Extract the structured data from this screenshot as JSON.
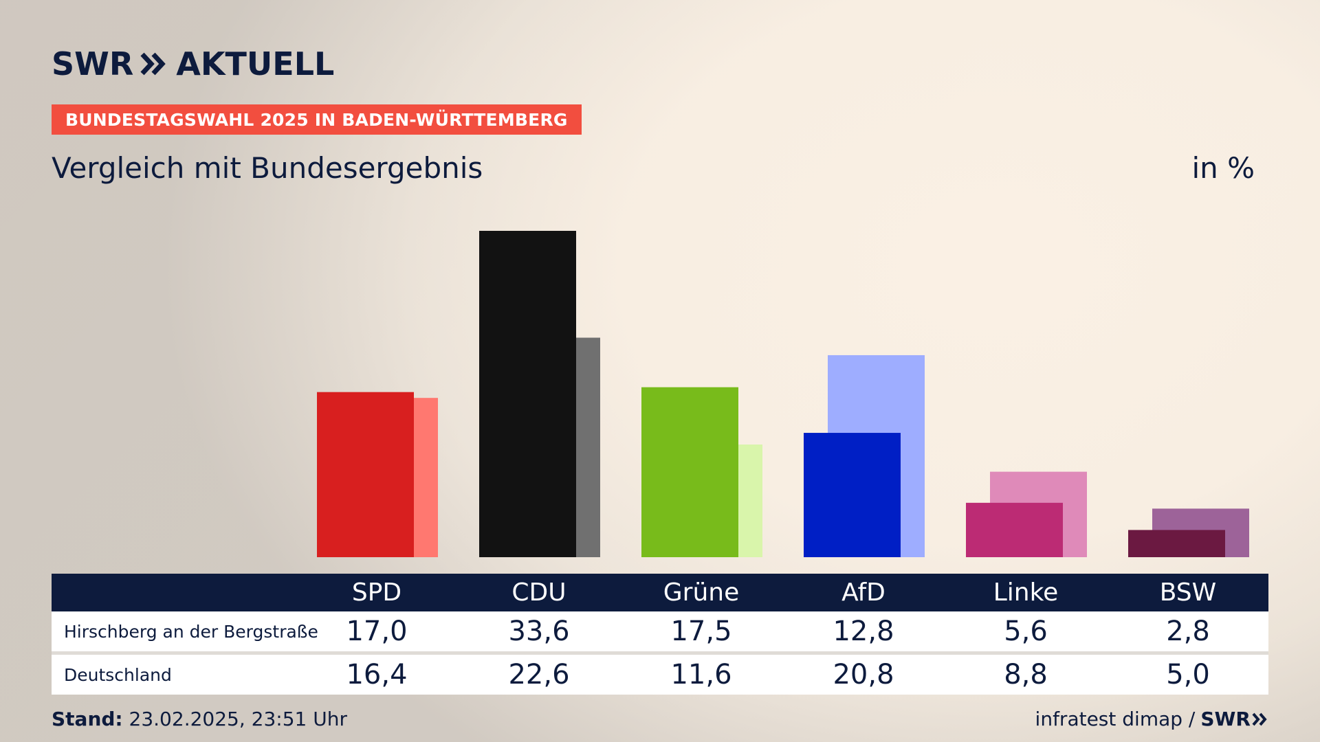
{
  "header": {
    "logo_text_left": "SWR",
    "logo_text_right": "AKTUELL",
    "banner": "BUNDESTAGSWAHL 2025 IN BADEN-WÜRTTEMBERG",
    "subtitle": "Vergleich mit Bundesergebnis",
    "unit": "in %"
  },
  "table": {
    "row_labels": [
      "Hirschberg an der Bergstraße",
      "Deutschland"
    ],
    "display_values": [
      [
        "17,0",
        "33,6",
        "17,5",
        "12,8",
        "5,6",
        "2,8"
      ],
      [
        "16,4",
        "22,6",
        "11,6",
        "20,8",
        "8,8",
        "5,0"
      ]
    ]
  },
  "footer": {
    "stand_label": "Stand:",
    "stand_value": "23.02.2025, 23:51 Uhr",
    "source": "infratest dimap /",
    "source_logo": "SWR"
  },
  "colors": {
    "navy": "#0d1b3d",
    "banner": "#f24e3f"
  },
  "chart_data": {
    "type": "bar",
    "categories": [
      "SPD",
      "CDU",
      "Grüne",
      "AfD",
      "Linke",
      "BSW"
    ],
    "series": [
      {
        "values": [
          17.0,
          33.6,
          17.5,
          12.8,
          5.6,
          2.8
        ],
        "colors": [
          "#d81f1f",
          "#121212",
          "#78bb1b",
          "#001fc5",
          "#bc2b74",
          "#6b1941"
        ]
      },
      {
        "values": [
          16.4,
          22.6,
          11.6,
          20.8,
          8.8,
          5.0
        ],
        "colors": [
          "#ff7870",
          "#707070",
          "#d9f5ab",
          "#9eadff",
          "#df8ab9",
          "#9d6399"
        ]
      }
    ],
    "ylim": [
      0,
      33.6
    ],
    "grid": false,
    "legend": "none"
  }
}
